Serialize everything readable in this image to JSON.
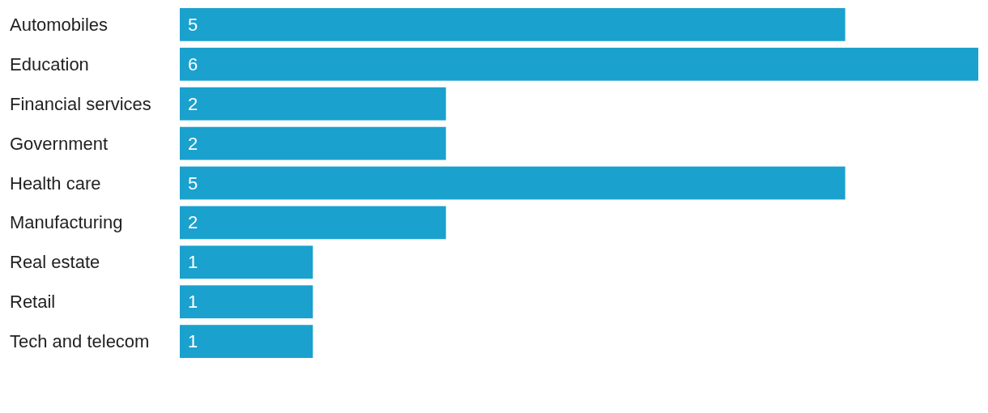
{
  "chart_data": {
    "type": "bar",
    "orientation": "horizontal",
    "categories": [
      "Automobiles",
      "Education",
      "Financial services",
      "Government",
      "Health care",
      "Manufacturing",
      "Real estate",
      "Retail",
      "Tech and telecom"
    ],
    "values": [
      5,
      6,
      2,
      2,
      5,
      2,
      1,
      1,
      1
    ],
    "color": "#1aa1ce",
    "data_labels": true
  }
}
